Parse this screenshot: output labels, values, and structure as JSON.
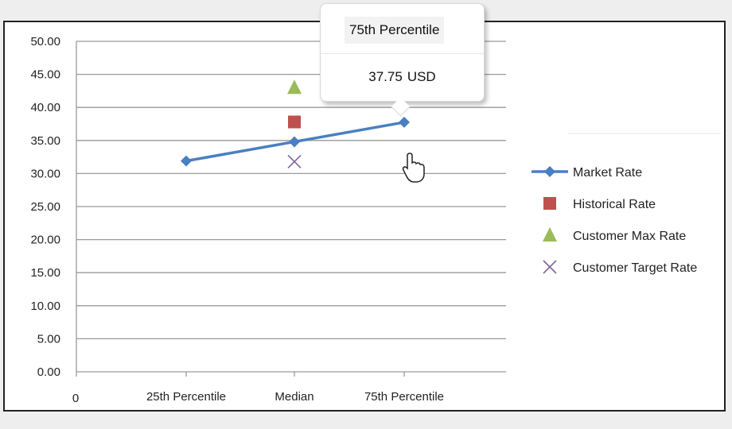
{
  "chart_data": {
    "type": "line",
    "categories": [
      "25th Percentile",
      "Median",
      "75th Percentile"
    ],
    "x_origin_label": "0",
    "ylim": [
      0,
      50
    ],
    "yticks": [
      "0.00",
      "5.00",
      "10.00",
      "15.00",
      "20.00",
      "25.00",
      "30.00",
      "35.00",
      "40.00",
      "45.00",
      "50.00"
    ],
    "grid": true,
    "legend_position": "right",
    "series": [
      {
        "name": "Market Rate",
        "marker": "diamond",
        "line": true,
        "color": "#4a7fc1",
        "values": [
          31.9,
          34.8,
          37.75
        ]
      },
      {
        "name": "Historical Rate",
        "marker": "square",
        "line": false,
        "color": "#c0504d",
        "values": [
          null,
          37.8,
          null
        ]
      },
      {
        "name": "Customer Max Rate",
        "marker": "triangle",
        "line": false,
        "color": "#9bbb59",
        "values": [
          null,
          43.0,
          null
        ]
      },
      {
        "name": "Customer Target Rate",
        "marker": "x",
        "line": false,
        "color": "#8064a2",
        "values": [
          null,
          31.8,
          null
        ]
      }
    ]
  },
  "tooltip": {
    "title": "75th Percentile",
    "value": "37.75",
    "unit": "USD"
  }
}
